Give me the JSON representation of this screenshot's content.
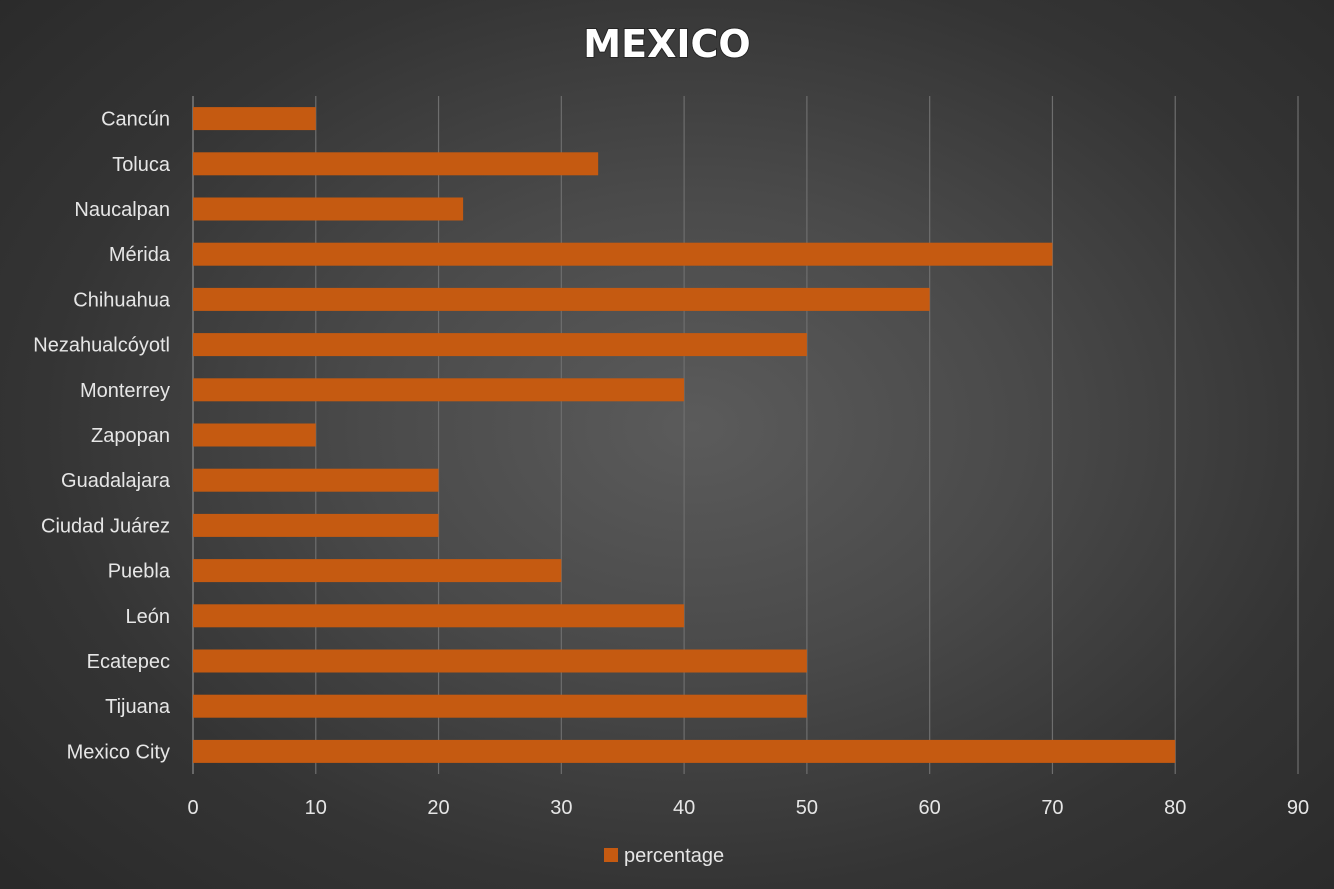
{
  "chart_data": {
    "type": "bar",
    "orientation": "horizontal",
    "title": "MEXICO",
    "categories": [
      "Cancún",
      "Toluca",
      "Naucalpan",
      "Mérida",
      "Chihuahua",
      "Nezahualcóyotl",
      "Monterrey",
      "Zapopan",
      "Guadalajara",
      "Ciudad Juárez",
      "Puebla",
      "León",
      "Ecatepec",
      "Tijuana",
      "Mexico City"
    ],
    "series": [
      {
        "name": "percentage",
        "color": "#c55a11",
        "values": [
          10,
          33,
          22,
          70,
          60,
          50,
          40,
          10,
          20,
          20,
          30,
          40,
          50,
          50,
          80
        ]
      }
    ],
    "xlim": [
      0,
      90
    ],
    "xticks": [
      0,
      10,
      20,
      30,
      40,
      50,
      60,
      70,
      80,
      90
    ],
    "grid": true,
    "legend": "bottom"
  }
}
